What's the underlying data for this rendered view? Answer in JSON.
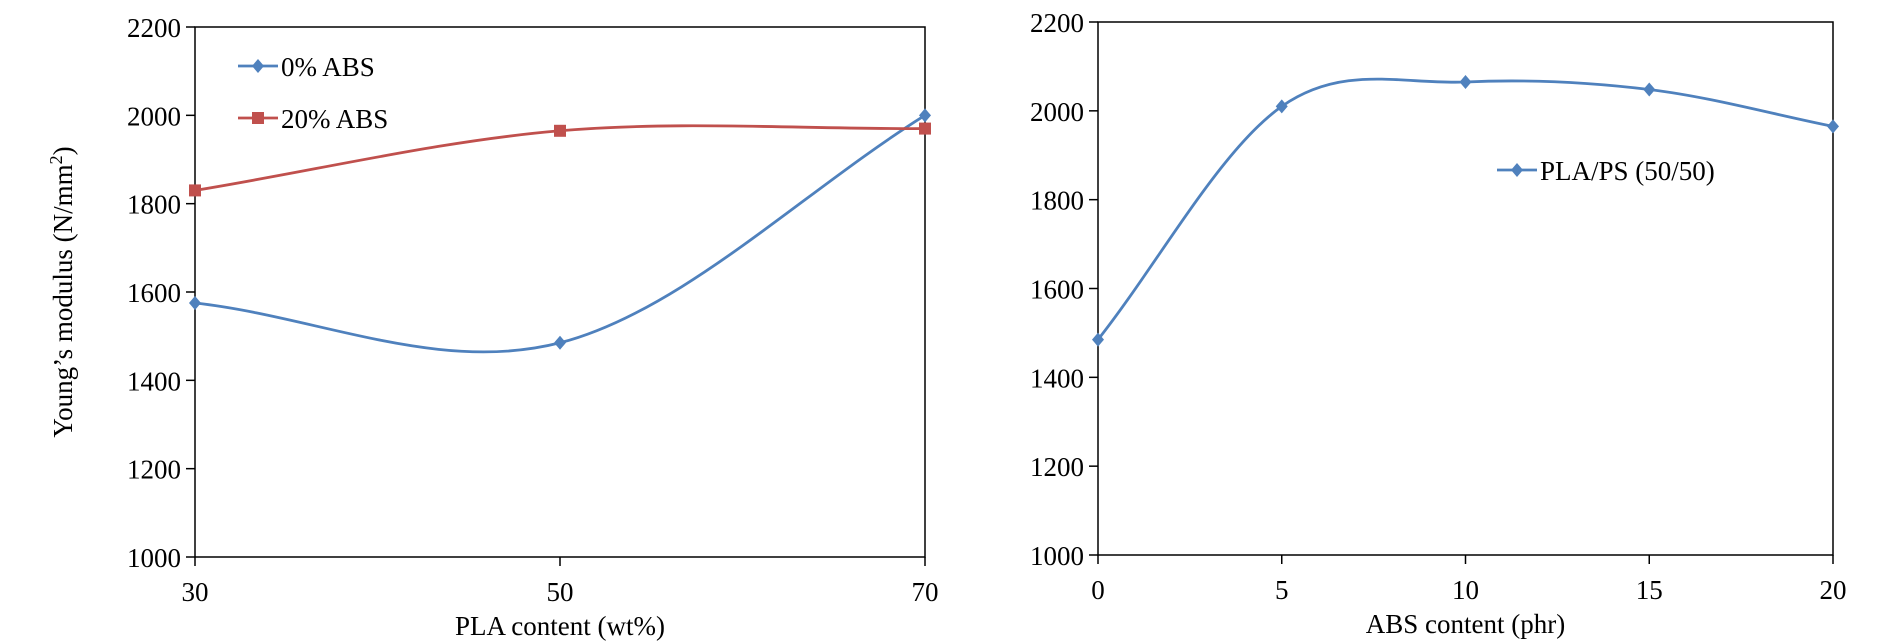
{
  "chart_data": [
    {
      "type": "line",
      "xlabel": "PLA content (wt%)",
      "ylabel": "Young’s modulus (N/mm",
      "ylabel_sup": "2",
      "ylabel_end": ")",
      "xlim": [
        30,
        70
      ],
      "ylim": [
        1000,
        2200
      ],
      "xticks": [
        30,
        50,
        70
      ],
      "yticks": [
        1000,
        1200,
        1400,
        1600,
        1800,
        2000,
        2200
      ],
      "grid": false,
      "legend": "top-left",
      "series": [
        {
          "name": "0% ABS",
          "color": "#4f81bd",
          "marker": "diamond",
          "x": [
            30,
            50,
            70
          ],
          "y": [
            1575,
            1485,
            2000
          ]
        },
        {
          "name": "20% ABS",
          "color": "#c0504d",
          "marker": "square",
          "x": [
            30,
            50,
            70
          ],
          "y": [
            1830,
            1965,
            1970
          ]
        }
      ]
    },
    {
      "type": "line",
      "xlabel": "ABS content (phr)",
      "ylabel": "",
      "xlim": [
        0,
        20
      ],
      "ylim": [
        1000,
        2200
      ],
      "xticks": [
        0,
        5,
        10,
        15,
        20
      ],
      "yticks": [
        1000,
        1200,
        1400,
        1600,
        1800,
        2000,
        2200
      ],
      "grid": false,
      "legend": "right",
      "series": [
        {
          "name": "PLA/PS (50/50)",
          "color": "#4f81bd",
          "marker": "diamond",
          "x": [
            0,
            5,
            10,
            15,
            20
          ],
          "y": [
            1485,
            2010,
            2065,
            2048,
            1965
          ]
        }
      ]
    }
  ]
}
